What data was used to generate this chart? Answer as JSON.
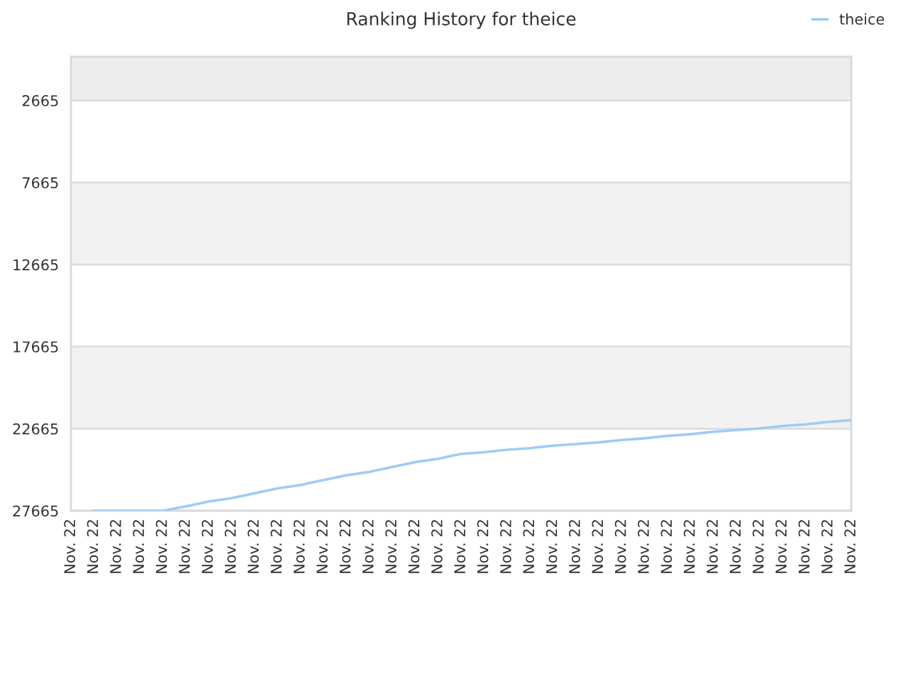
{
  "chart_data": {
    "type": "line",
    "title": "Ranking History for theice",
    "categories": [
      "Nov. 22",
      "Nov. 22",
      "Nov. 22",
      "Nov. 22",
      "Nov. 22",
      "Nov. 22",
      "Nov. 22",
      "Nov. 22",
      "Nov. 22",
      "Nov. 22",
      "Nov. 22",
      "Nov. 22",
      "Nov. 22",
      "Nov. 22",
      "Nov. 22",
      "Nov. 22",
      "Nov. 22",
      "Nov. 22",
      "Nov. 22",
      "Nov. 22",
      "Nov. 22",
      "Nov. 22",
      "Nov. 22",
      "Nov. 22",
      "Nov. 22",
      "Nov. 22",
      "Nov. 22",
      "Nov. 22",
      "Nov. 22",
      "Nov. 22",
      "Nov. 22",
      "Nov. 22",
      "Nov. 22",
      "Nov. 22",
      "Nov. 22"
    ],
    "series": [
      {
        "name": "theice",
        "color": "#9ecbf5",
        "values": [
          null,
          27665,
          27665,
          27665,
          27665,
          27400,
          27100,
          26900,
          26600,
          26300,
          26100,
          25800,
          25500,
          25300,
          25000,
          24700,
          24500,
          24200,
          24100,
          23950,
          23850,
          23700,
          23600,
          23500,
          23350,
          23250,
          23100,
          23000,
          22850,
          22750,
          22650,
          22500,
          22400,
          22250,
          22150
        ]
      }
    ],
    "ylim": [
      27665,
      0
    ],
    "yticks": [
      2665,
      7665,
      12665,
      17665,
      22665,
      27665
    ],
    "grid": "y",
    "legend": "top right",
    "bands": [
      {
        "axis": "y",
        "from": 0,
        "to": 2665,
        "color": "#ededed"
      },
      {
        "axis": "y",
        "from": 7665,
        "to": 12665,
        "color": "#f2f2f2"
      },
      {
        "axis": "y",
        "from": 17665,
        "to": 22665,
        "color": "#f2f2f2"
      }
    ]
  }
}
